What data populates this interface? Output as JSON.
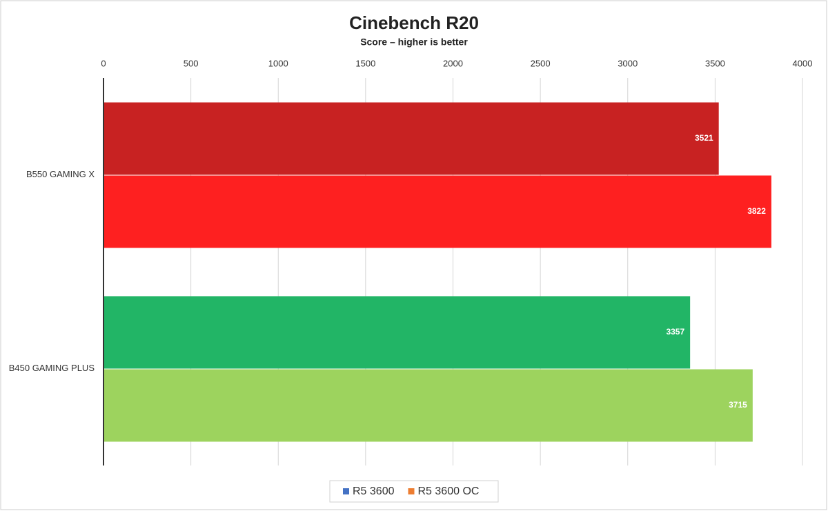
{
  "chart_data": {
    "type": "hbar",
    "title": "Cinebench R20",
    "subtitle": "Score – higher is better",
    "categories": [
      "B550 GAMING X",
      "B450 GAMING PLUS"
    ],
    "series": [
      {
        "name": "R5 3600",
        "color": "#4472c4",
        "bar_colors": [
          "#c82222",
          "#22b566"
        ],
        "values": [
          3521,
          3357
        ]
      },
      {
        "name": "R5 3600 OC",
        "color": "#ed7d31",
        "bar_colors": [
          "#fe2020",
          "#9dd35e"
        ],
        "values": [
          3822,
          3715
        ]
      }
    ],
    "xlim": [
      0,
      4000
    ],
    "xticks": [
      0,
      500,
      1000,
      1500,
      2000,
      2500,
      3000,
      3500,
      4000
    ],
    "grid": true,
    "legend": "bottom"
  }
}
